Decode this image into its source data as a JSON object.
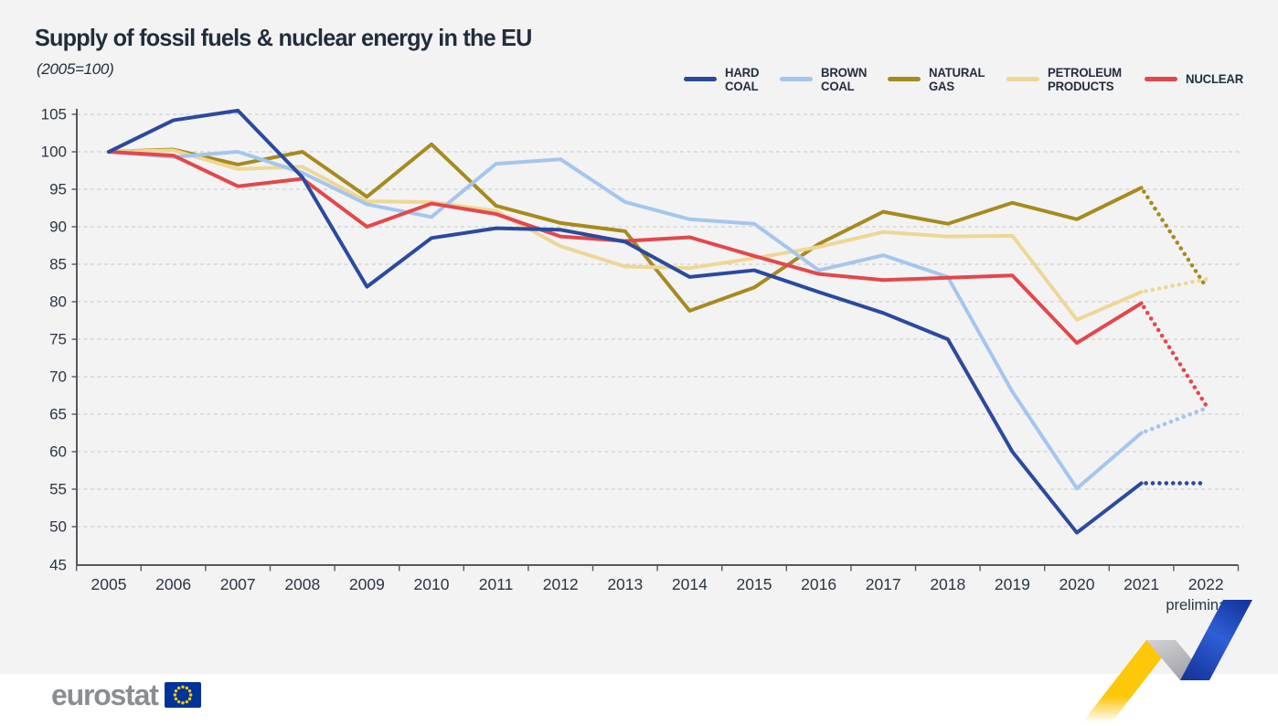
{
  "title": "Supply of fossil fuels & nuclear energy in the EU",
  "subtitle": "(2005=100)",
  "footer": {
    "logo_text": "eurostat",
    "flag_icon": "eu-flag-icon"
  },
  "decoration": {
    "name": "zigzag-arrow",
    "yellow": "#fdc70a",
    "gray_light": "#d2d2d6",
    "gray_dark": "#9fa0a6",
    "blue_light": "#2f5fd6",
    "blue_dark": "#16379f"
  },
  "chart_data": {
    "type": "line",
    "title": "Supply of fossil fuels & nuclear energy in the EU",
    "index_note": "(2005=100)",
    "x": [
      2005,
      2006,
      2007,
      2008,
      2009,
      2010,
      2011,
      2012,
      2013,
      2014,
      2015,
      2016,
      2017,
      2018,
      2019,
      2020,
      2021,
      2022
    ],
    "last_x_note": "preliminary",
    "ylim": [
      45,
      105
    ],
    "ytick_step": 5,
    "grid": "horizontal-dashed",
    "legend_position": "top-right",
    "axis_color": "#55585e",
    "grid_color": "#c9c9c9",
    "series": [
      {
        "name": "HARD COAL",
        "legend_lines": [
          "HARD",
          "COAL"
        ],
        "color": "#2a4a9f",
        "dotted_from": 2021,
        "values": [
          100,
          104.2,
          105.5,
          96.6,
          82,
          88.5,
          89.8,
          89.6,
          88,
          83.3,
          84.2,
          81.3,
          78.5,
          75,
          60,
          49.2,
          55.8,
          55.8
        ]
      },
      {
        "name": "BROWN COAL",
        "legend_lines": [
          "BROWN",
          "COAL"
        ],
        "color": "#a4c6ee",
        "dotted_from": 2021,
        "values": [
          100,
          99.3,
          100,
          97.2,
          93,
          91.3,
          98.4,
          99,
          93.3,
          91,
          90.4,
          84.2,
          86.2,
          83.3,
          68,
          55.1,
          62.5,
          65.8
        ]
      },
      {
        "name": "NATURAL GAS",
        "legend_lines": [
          "NATURAL",
          "GAS"
        ],
        "color": "#a78a1e",
        "dotted_from": 2021,
        "values": [
          100,
          100.3,
          98.3,
          100,
          94,
          101,
          92.8,
          90.5,
          89.4,
          78.8,
          81.9,
          87.7,
          92,
          90.4,
          93.2,
          91,
          95.2,
          82
        ]
      },
      {
        "name": "PETROLEUM PRODUCTS",
        "legend_lines": [
          "PETROLEUM",
          "PRODUCTS"
        ],
        "color": "#eed795",
        "dotted_from": 2021,
        "values": [
          100,
          100.2,
          97.7,
          98,
          93.4,
          93.3,
          92.1,
          87.4,
          84.7,
          84.5,
          85.8,
          87.3,
          89.3,
          88.7,
          88.8,
          77.6,
          81.3,
          83
        ]
      },
      {
        "name": "NUCLEAR",
        "legend_lines": [
          "NUCLEAR"
        ],
        "color": "#e4474a",
        "dotted_from": 2021,
        "values": [
          100,
          99.5,
          95.4,
          96.4,
          90,
          93.1,
          91.7,
          88.7,
          88.1,
          88.6,
          86.1,
          83.7,
          82.9,
          83.2,
          83.5,
          74.5,
          79.8,
          66.2
        ]
      }
    ]
  }
}
